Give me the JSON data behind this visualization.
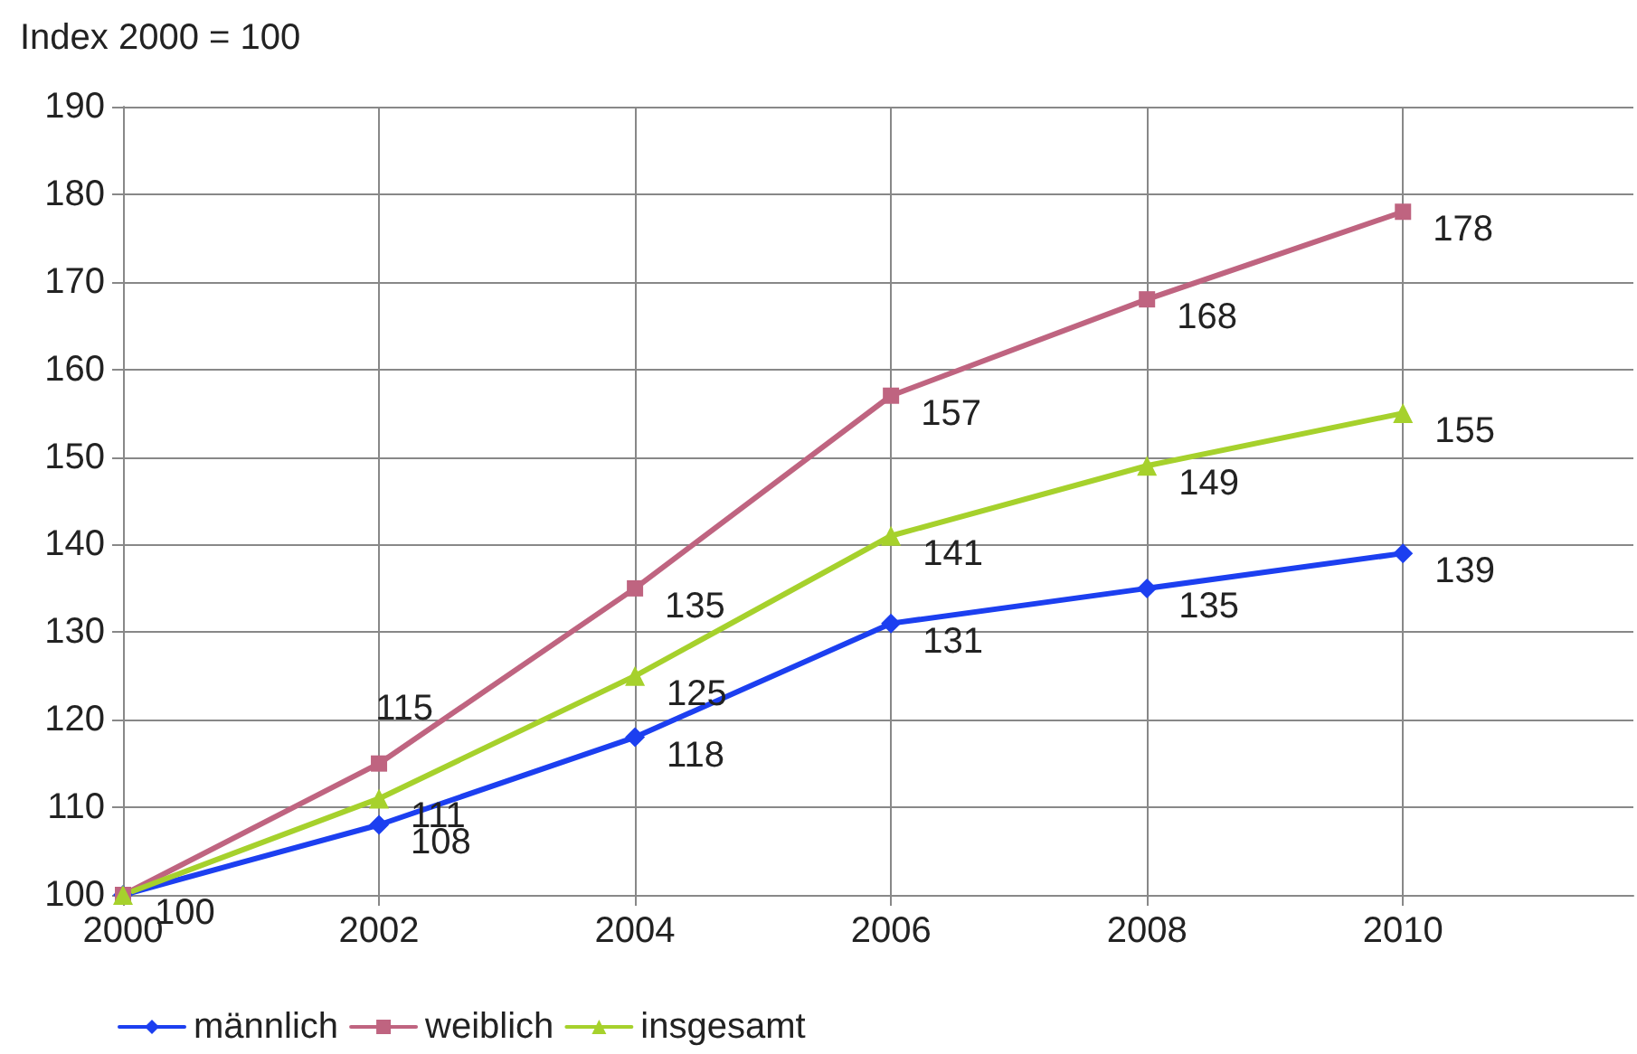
{
  "chart_data": {
    "type": "line",
    "ylabel": "Index 2000 = 100",
    "x": [
      2000,
      2002,
      2004,
      2006,
      2008,
      2010
    ],
    "xlim": [
      2000,
      2011.8
    ],
    "xticks": [
      2000,
      2002,
      2004,
      2006,
      2008,
      2010
    ],
    "ylim": [
      100,
      190
    ],
    "yticks": [
      100,
      110,
      120,
      130,
      140,
      150,
      160,
      170,
      180,
      190
    ],
    "series": [
      {
        "name": "männlich",
        "color": "#1c3ff0",
        "marker": "diamond",
        "values": [
          100,
          108,
          118,
          131,
          135,
          139
        ]
      },
      {
        "name": "weiblich",
        "color": "#bf6480",
        "marker": "square",
        "values": [
          100,
          115,
          135,
          157,
          168,
          178
        ],
        "value_labels": [
          null,
          "115",
          "135",
          "157",
          "168",
          "178"
        ]
      },
      {
        "name": "insgesamt",
        "color": "#a6d12c",
        "marker": "triangle",
        "values": [
          100,
          111,
          125,
          141,
          149,
          155
        ],
        "value_labels": [
          null,
          "111",
          "125",
          "141",
          "149",
          "155"
        ]
      }
    ],
    "data_labels": true,
    "grid": true,
    "legend": "bottom left",
    "line_style": "solid"
  }
}
